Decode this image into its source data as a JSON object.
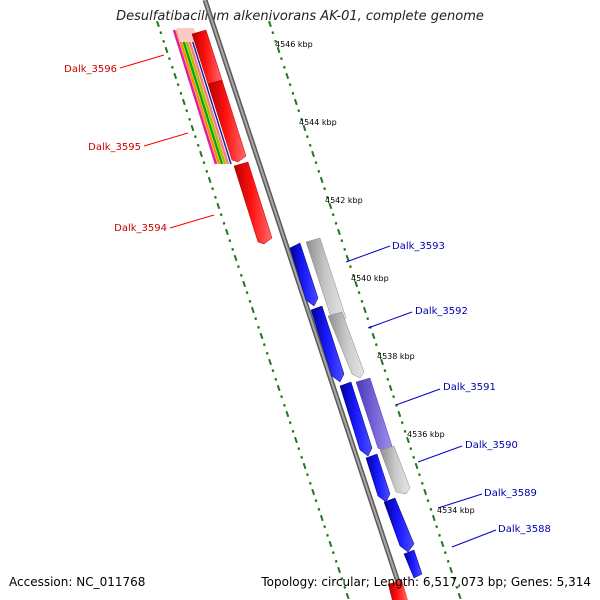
{
  "header": {
    "title": "Desulfatibacillum alkenivorans AK-01, complete genome"
  },
  "footer": {
    "accession": "Accession: NC_011768",
    "info": "Topology: circular; Length: 6,517,073 bp; Genes: 5,314"
  },
  "scale_labels": [
    "4546 kbp",
    "4544 kbp",
    "4542 kbp",
    "4540 kbp",
    "4538 kbp",
    "4536 kbp",
    "4534 kbp"
  ],
  "genes_reverse": [
    "Dalk_3596",
    "Dalk_3595",
    "Dalk_3594"
  ],
  "genes_forward": [
    "Dalk_3593",
    "Dalk_3592",
    "Dalk_3591",
    "Dalk_3590",
    "Dalk_3589",
    "Dalk_3588"
  ],
  "colors": {
    "reverse_gene": "#ff0000",
    "forward_gene": "#0000ee",
    "reverse_label": "#cc0000",
    "forward_label": "#0000aa",
    "feature_gray": "#b8b8b8",
    "feature_purple": "#6f5fd0",
    "tick": "#1a7a1a",
    "backbone": "#8a8a8a"
  }
}
